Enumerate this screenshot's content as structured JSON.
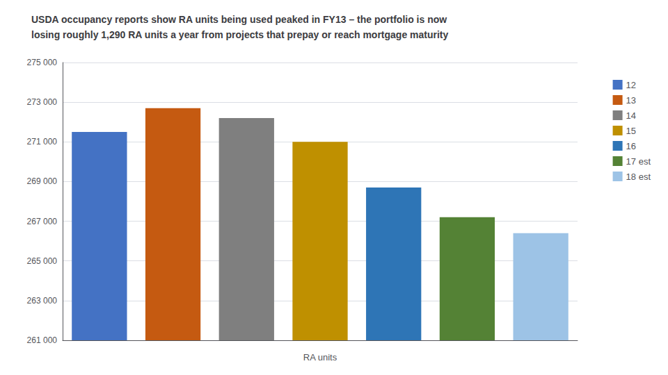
{
  "chart_data": {
    "type": "bar",
    "title": "USDA occupancy reports show RA units being used peaked in FY13 – the portfolio is now\nlosing roughly 1,290 RA units a year from projects that prepay or reach mortgage maturity",
    "xlabel": "RA units",
    "categories": [
      "12",
      "13",
      "14",
      "15",
      "16",
      "17 est",
      "18 est"
    ],
    "values": [
      271500,
      272700,
      272200,
      271000,
      268700,
      267200,
      266400
    ],
    "colors": [
      "#4472C4",
      "#C55A11",
      "#7F7F7F",
      "#BF9000",
      "#2E75B6",
      "#548235",
      "#9DC3E6"
    ],
    "ylim": [
      261000,
      275000
    ],
    "yticks": [
      {
        "value": 261000,
        "label": "261 000"
      },
      {
        "value": 263000,
        "label": "263 000"
      },
      {
        "value": 265000,
        "label": "265 000"
      },
      {
        "value": 267000,
        "label": "267 000"
      },
      {
        "value": 269000,
        "label": "269 000"
      },
      {
        "value": 271000,
        "label": "271 000"
      },
      {
        "value": 273000,
        "label": "273 000"
      },
      {
        "value": 275000,
        "label": "275 000"
      }
    ],
    "grid": true,
    "legend": "right",
    "tick_labels": "y"
  }
}
